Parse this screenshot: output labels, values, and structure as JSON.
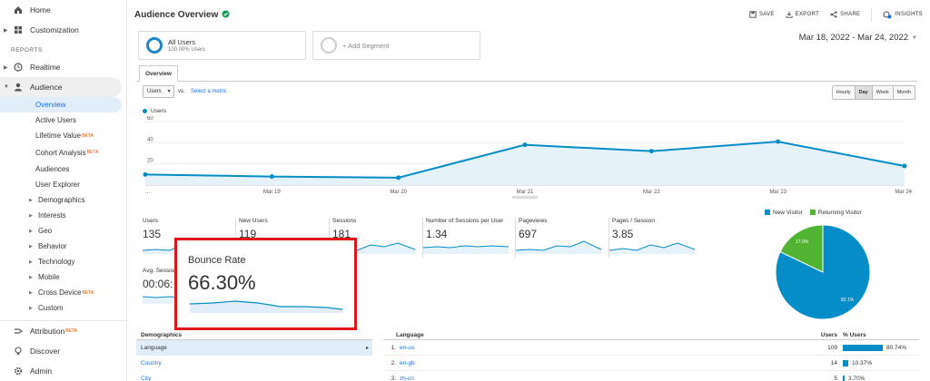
{
  "sidebar": {
    "home": "Home",
    "customization": "Customization",
    "reports_label": "REPORTS",
    "realtime": "Realtime",
    "audience": "Audience",
    "audience_items": [
      {
        "label": "Overview"
      },
      {
        "label": "Active Users"
      },
      {
        "label": "Lifetime Value",
        "beta": "BETA"
      },
      {
        "label": "Cohort Analysis",
        "beta": "BETA"
      },
      {
        "label": "Audiences"
      },
      {
        "label": "User Explorer"
      },
      {
        "label": "Demographics"
      },
      {
        "label": "Interests"
      },
      {
        "label": "Geo"
      },
      {
        "label": "Behavior"
      },
      {
        "label": "Technology"
      },
      {
        "label": "Mobile"
      },
      {
        "label": "Cross Device",
        "beta": "BETA"
      },
      {
        "label": "Custom"
      }
    ],
    "attribution": "Attribution",
    "attribution_beta": "BETA",
    "discover": "Discover",
    "admin": "Admin"
  },
  "header": {
    "title": "Audience Overview",
    "save": "SAVE",
    "export": "EXPORT",
    "share": "SHARE",
    "insights": "INSIGHTS"
  },
  "segments": {
    "all_users": "All Users",
    "all_users_pct": "100.00% Users",
    "add_segment": "+ Add Segment"
  },
  "date_range": "Mar 18, 2022 - Mar 24, 2022",
  "tab_overview": "Overview",
  "controls": {
    "metric": "Users",
    "vs": "vs.",
    "select_metric": "Select a metric",
    "granularity": [
      "Hourly",
      "Day",
      "Week",
      "Month"
    ],
    "granularity_selected": "Day"
  },
  "chart_data": {
    "type": "area",
    "series": [
      {
        "name": "Users",
        "values": [
          10,
          8,
          7,
          38,
          32,
          41,
          18
        ]
      }
    ],
    "categories": [
      "...",
      "Mar 19",
      "Mar 20",
      "Mar 21",
      "Mar 22",
      "Mar 23",
      "Mar 24"
    ],
    "ylim": [
      0,
      60
    ],
    "yticks": [
      "20",
      "40",
      "60"
    ],
    "color": "#058dc7"
  },
  "metrics": [
    {
      "label": "Users",
      "value": "135"
    },
    {
      "label": "New Users",
      "value": "119"
    },
    {
      "label": "Sessions",
      "value": "181"
    },
    {
      "label": "Number of Sessions per User",
      "value": "1.34"
    },
    {
      "label": "Pageviews",
      "value": "697"
    },
    {
      "label": "Pages / Session",
      "value": "3.85"
    },
    {
      "label": "Avg. Session Duration",
      "value": "00:06:"
    }
  ],
  "callout": {
    "label": "Bounce Rate",
    "value": "66.30%"
  },
  "pie": {
    "legend": [
      {
        "label": "New Visitor",
        "color": "#058dc7"
      },
      {
        "label": "Returning Visitor",
        "color": "#50b432"
      }
    ],
    "values": [
      82.1,
      17.9
    ],
    "labels": [
      "82.1%",
      "17.9%"
    ]
  },
  "demographics": {
    "header": "Demographics",
    "rows": [
      "Language",
      "Country",
      "City"
    ]
  },
  "language_table": {
    "header": "Language",
    "users_header": "Users",
    "pct_header": "% Users",
    "rows": [
      {
        "idx": "1.",
        "name": "en-us",
        "users": "109",
        "pct": "80.74%",
        "frac": 0.8074
      },
      {
        "idx": "2.",
        "name": "en-gb",
        "users": "14",
        "pct": "10.37%",
        "frac": 0.1037
      },
      {
        "idx": "3.",
        "name": "zh-cn",
        "users": "5",
        "pct": "3.70%",
        "frac": 0.037
      }
    ]
  }
}
